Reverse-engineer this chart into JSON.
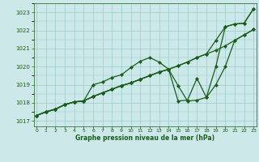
{
  "title": "Graphe pression niveau de la mer (hPa)",
  "hours": [
    0,
    1,
    2,
    3,
    4,
    5,
    6,
    7,
    8,
    9,
    10,
    11,
    12,
    13,
    14,
    15,
    16,
    17,
    18,
    19,
    20,
    21,
    22,
    23
  ],
  "ylim": [
    1016.7,
    1023.5
  ],
  "xlim": [
    -0.3,
    23.3
  ],
  "yticks": [
    1017,
    1018,
    1019,
    1020,
    1021,
    1022,
    1023
  ],
  "background_color": "#cce8e8",
  "grid_color": "#99cccc",
  "line_color": "#1a5c1a",
  "line1": [
    1017.3,
    1017.5,
    1017.65,
    1017.9,
    1018.05,
    1018.1,
    1018.35,
    1018.55,
    1018.75,
    1018.95,
    1019.1,
    1019.3,
    1019.5,
    1019.7,
    1019.85,
    1020.05,
    1020.25,
    1020.5,
    1020.7,
    1020.9,
    1021.15,
    1021.45,
    1021.75,
    1022.05
  ],
  "line2": [
    1017.3,
    1017.5,
    1017.65,
    1017.9,
    1018.05,
    1018.1,
    1019.0,
    1019.15,
    1019.4,
    1019.55,
    1019.95,
    1020.3,
    1020.5,
    1020.25,
    1019.85,
    1018.95,
    1018.1,
    1018.15,
    1018.3,
    1019.0,
    1020.0,
    1021.45,
    1021.75,
    1022.05
  ],
  "line3": [
    1017.3,
    1017.5,
    1017.65,
    1017.9,
    1018.05,
    1018.1,
    1018.35,
    1018.55,
    1018.75,
    1018.95,
    1019.1,
    1019.3,
    1019.5,
    1019.7,
    1019.85,
    1018.1,
    1018.15,
    1019.35,
    1018.3,
    1020.0,
    1022.2,
    1022.35,
    1022.4,
    1023.2
  ],
  "line4": [
    1017.3,
    1017.5,
    1017.65,
    1017.9,
    1018.05,
    1018.1,
    1018.35,
    1018.55,
    1018.75,
    1018.95,
    1019.1,
    1019.3,
    1019.5,
    1019.7,
    1019.85,
    1020.05,
    1020.25,
    1020.5,
    1020.7,
    1021.45,
    1022.2,
    1022.35,
    1022.4,
    1023.2
  ],
  "marker": "D",
  "markersize": 2.2,
  "linewidth": 0.9,
  "tick_fontsize": 5.0,
  "label_fontsize": 5.5
}
